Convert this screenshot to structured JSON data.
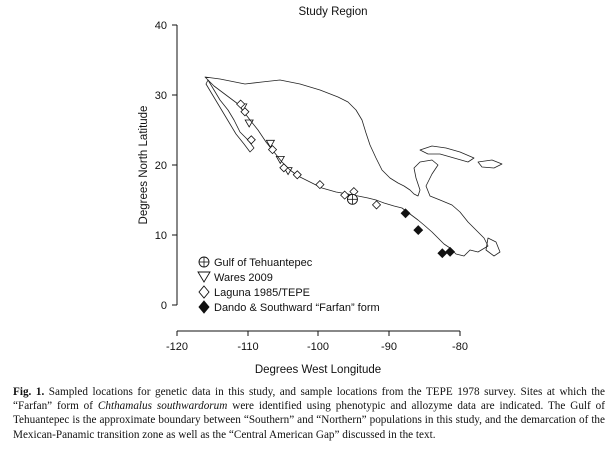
{
  "figure": {
    "title": "Study Region",
    "x_axis_label": "Degrees West Longitude",
    "y_axis_label": "Degrees North Latitude",
    "x_ticks": [
      "-120",
      "-110",
      "-100",
      "-90",
      "-80"
    ],
    "y_ticks": [
      "0",
      "10",
      "20",
      "30",
      "40"
    ],
    "x_range": [
      -120,
      -80
    ],
    "y_range": [
      0,
      40
    ]
  },
  "legend": [
    {
      "symbol": "circle-plus",
      "label": "Gulf of Tehuantepec"
    },
    {
      "symbol": "triangle-down",
      "label": "Wares 2009"
    },
    {
      "symbol": "diamond-open",
      "label": "Laguna 1985/TEPE"
    },
    {
      "symbol": "diamond-filled",
      "label": "Dando & Southward “Farfan” form"
    }
  ],
  "sites": {
    "gulf_of_tehuantepec": [
      {
        "lon": -95.2,
        "lat": 15.1
      }
    ],
    "wares_2009": [
      {
        "lon": -110.7,
        "lat": 28.3
      },
      {
        "lon": -109.8,
        "lat": 26.0
      },
      {
        "lon": -106.8,
        "lat": 23.1
      },
      {
        "lon": -105.4,
        "lat": 20.8
      },
      {
        "lon": -104.3,
        "lat": 19.2
      }
    ],
    "laguna_1985_tepe": [
      {
        "lon": -111.0,
        "lat": 28.7
      },
      {
        "lon": -110.4,
        "lat": 27.6
      },
      {
        "lon": -109.5,
        "lat": 23.6
      },
      {
        "lon": -106.5,
        "lat": 22.2
      },
      {
        "lon": -104.9,
        "lat": 19.6
      },
      {
        "lon": -103.0,
        "lat": 18.6
      },
      {
        "lon": -99.8,
        "lat": 17.2
      },
      {
        "lon": -96.3,
        "lat": 15.7
      },
      {
        "lon": -95.0,
        "lat": 16.2
      },
      {
        "lon": -91.8,
        "lat": 14.3
      }
    ],
    "farfan_form": [
      {
        "lon": -87.7,
        "lat": 13.1
      },
      {
        "lon": -85.9,
        "lat": 10.7
      },
      {
        "lon": -82.5,
        "lat": 7.4
      },
      {
        "lon": -81.4,
        "lat": 7.6
      }
    ]
  },
  "caption": {
    "fig_label": "Fig. 1.",
    "part1": " Sampled locations for genetic data in this study, and sample locations from the TEPE 1978 survey. Sites at which the “Farfan” form of ",
    "species": "Chthamalus southwardorum",
    "part2": " were identified using phenotypic and allozyme data are indicated. The Gulf of Tehuantepec is the approximate boundary between “Southern” and “Northern” populations in this study, and the demarcation of the Mexican-Panamic transition zone as well as the “Central American Gap” discussed in the text."
  }
}
